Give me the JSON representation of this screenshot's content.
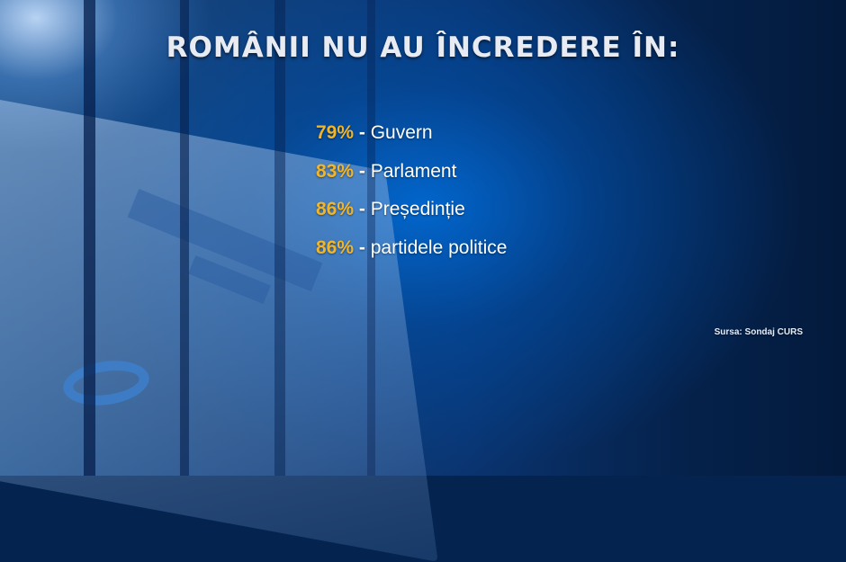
{
  "title": "ROMÂNII NU AU ÎNCREDERE ÎN:",
  "items": [
    {
      "percent": "79%",
      "separator": "-",
      "label": "Guvern"
    },
    {
      "percent": "83%",
      "separator": "-",
      "label": "Parlament"
    },
    {
      "percent": "86%",
      "separator": "-",
      "label": "Președinție"
    },
    {
      "percent": "86%",
      "separator": "-",
      "label": "partidele politice"
    }
  ],
  "source": "Sursa: Sondaj CURS",
  "colors": {
    "percent": "#f1b52a",
    "text": "#ffffff",
    "background": "#0a3470"
  }
}
